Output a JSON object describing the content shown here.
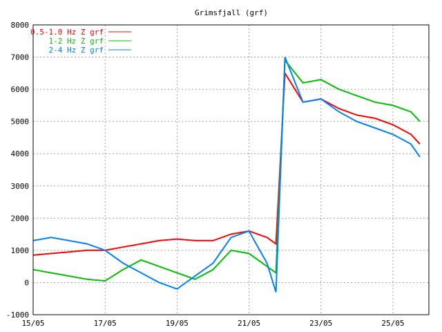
{
  "chart_data": {
    "type": "line",
    "title": "Grimsfjall (grf)",
    "xlabel": "",
    "ylabel": "",
    "xlim": [
      "15/05",
      "26/05"
    ],
    "ylim": [
      -1000,
      8000
    ],
    "y_ticks": [
      -1000,
      0,
      1000,
      2000,
      3000,
      4000,
      5000,
      6000,
      7000,
      8000
    ],
    "x_ticks": [
      "15/05",
      "17/05",
      "19/05",
      "21/05",
      "23/05",
      "25/05"
    ],
    "grid": true,
    "legend_position": "top-left",
    "series": [
      {
        "name": "0.5-1.0 Hz Z grf",
        "color": "#ff0000",
        "x": [
          "15/05 00:00",
          "15/05 12:00",
          "16/05 00:00",
          "16/05 12:00",
          "17/05 00:00",
          "17/05 12:00",
          "18/05 00:00",
          "18/05 12:00",
          "19/05 00:00",
          "19/05 12:00",
          "20/05 00:00",
          "20/05 12:00",
          "21/05 00:00",
          "21/05 12:00",
          "21/05 18:00",
          "22/05 00:00",
          "22/05 12:00",
          "23/05 00:00",
          "23/05 12:00",
          "24/05 00:00",
          "24/05 12:00",
          "25/05 00:00",
          "25/05 12:00",
          "25/05 18:00"
        ],
        "values": [
          850,
          900,
          950,
          1000,
          1000,
          1100,
          1200,
          1300,
          1350,
          1300,
          1300,
          1500,
          1600,
          1400,
          1200,
          6500,
          5600,
          5700,
          5400,
          5200,
          5100,
          4900,
          4600,
          4300
        ]
      },
      {
        "name": "1-2 Hz Z grf",
        "color": "#00c000",
        "x": [
          "15/05 00:00",
          "15/05 12:00",
          "16/05 00:00",
          "16/05 12:00",
          "17/05 00:00",
          "17/05 12:00",
          "18/05 00:00",
          "18/05 12:00",
          "19/05 00:00",
          "19/05 12:00",
          "20/05 00:00",
          "20/05 12:00",
          "21/05 00:00",
          "21/05 12:00",
          "21/05 18:00",
          "22/05 00:00",
          "22/05 12:00",
          "23/05 00:00",
          "23/05 12:00",
          "24/05 00:00",
          "24/05 12:00",
          "25/05 00:00",
          "25/05 12:00",
          "25/05 18:00"
        ],
        "values": [
          400,
          300,
          200,
          100,
          50,
          400,
          700,
          500,
          300,
          100,
          400,
          1000,
          900,
          500,
          300,
          6900,
          6200,
          6300,
          6000,
          5800,
          5600,
          5500,
          5300,
          5000
        ]
      },
      {
        "name": "2-4 Hz Z grf",
        "color": "#0080ff",
        "x": [
          "15/05 00:00",
          "15/05 12:00",
          "16/05 00:00",
          "16/05 12:00",
          "17/05 00:00",
          "17/05 12:00",
          "18/05 00:00",
          "18/05 12:00",
          "19/05 00:00",
          "19/05 12:00",
          "20/05 00:00",
          "20/05 12:00",
          "21/05 00:00",
          "21/05 12:00",
          "21/05 18:00",
          "22/05 00:00",
          "22/05 12:00",
          "23/05 00:00",
          "23/05 12:00",
          "24/05 00:00",
          "24/05 12:00",
          "25/05 00:00",
          "25/05 12:00",
          "25/05 18:00"
        ],
        "values": [
          1300,
          1400,
          1300,
          1200,
          1000,
          600,
          300,
          0,
          -200,
          200,
          600,
          1400,
          1600,
          600,
          -300,
          7000,
          5600,
          5700,
          5300,
          5000,
          4800,
          4600,
          4300,
          3900
        ]
      }
    ]
  }
}
